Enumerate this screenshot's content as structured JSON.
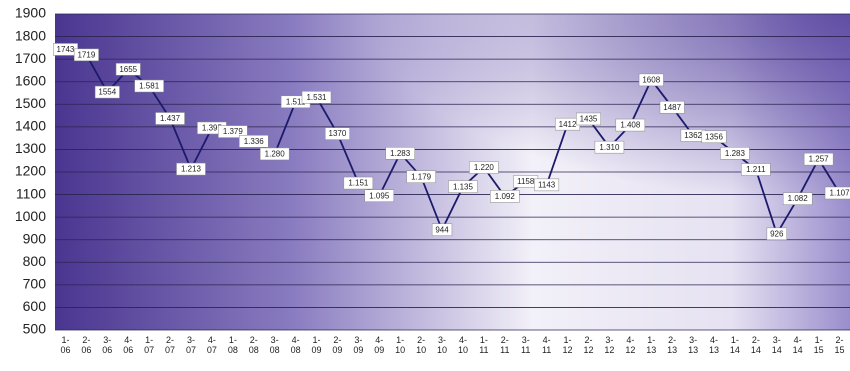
{
  "chart_data": {
    "type": "line",
    "categories": [
      "1- 06",
      "2- 06",
      "3- 06",
      "4- 06",
      "1- 07",
      "2- 07",
      "3- 07",
      "4- 07",
      "1- 08",
      "2- 08",
      "3- 08",
      "4- 08",
      "1- 09",
      "2- 09",
      "3- 09",
      "4- 09",
      "1- 10",
      "2- 10",
      "3- 10",
      "4- 10",
      "1- 11",
      "2- 11",
      "3- 11",
      "4- 11",
      "1- 12",
      "2- 12",
      "3- 12",
      "4- 12",
      "1- 13",
      "2- 13",
      "3- 13",
      "4- 13",
      "1- 14",
      "2- 14",
      "3- 14",
      "4- 14",
      "1- 15",
      "2- 15"
    ],
    "series": [
      {
        "color": "#1c1a6b",
        "values": [
          1743,
          1719,
          1554,
          1655,
          1581,
          1437,
          1213,
          1395,
          1379,
          1336,
          1280,
          1511,
          1531,
          1370,
          1151,
          1095,
          1283,
          1179,
          944,
          1135,
          1220,
          1092,
          1158,
          1143,
          1412,
          1435,
          1310,
          1408,
          1608,
          1487,
          1362,
          1356,
          1283,
          1211,
          926,
          1082,
          1257,
          1107
        ],
        "value_labels": [
          "1743",
          "1719",
          "1554",
          "1655",
          "1.581",
          "1.437",
          "1.213",
          "1.395",
          "1.379",
          "1.336",
          "1.280",
          "1.511",
          "1.531",
          "1370",
          "1.151",
          "1.095",
          "1.283",
          "1.179",
          "944",
          "1.135",
          "1.220",
          "1.092",
          "1158",
          "1143",
          "1412",
          "1435",
          "1.310",
          "1.408",
          "1608",
          "1487",
          "1362",
          "1356",
          "1.283",
          "1.211",
          "926",
          "1.082",
          "1.257",
          "1.107"
        ]
      }
    ],
    "ylim": [
      500,
      1900
    ],
    "yticks": [
      500,
      600,
      700,
      800,
      900,
      1000,
      1100,
      1200,
      1300,
      1400,
      1500,
      1600,
      1700,
      1800,
      1900
    ],
    "grid": true
  }
}
